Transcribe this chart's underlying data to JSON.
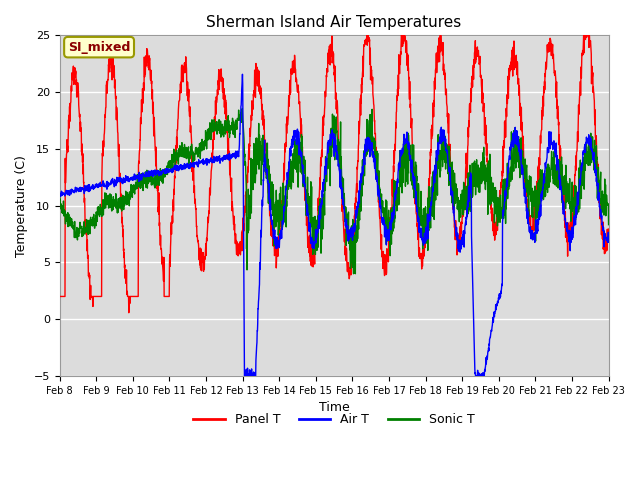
{
  "title": "Sherman Island Air Temperatures",
  "xlabel": "Time",
  "ylabel": "Temperature (C)",
  "ylim": [
    -5,
    25
  ],
  "yticks": [
    -5,
    0,
    5,
    10,
    15,
    20,
    25
  ],
  "x_tick_labels": [
    "Feb 8",
    "Feb 9",
    "Feb 10",
    "Feb 11",
    "Feb 12",
    "Feb 13",
    "Feb 14",
    "Feb 15",
    "Feb 16",
    "Feb 17",
    "Feb 18",
    "Feb 19",
    "Feb 20",
    "Feb 21",
    "Feb 22",
    "Feb 23"
  ],
  "annotation_text": "SI_mixed",
  "annotation_color": "#8B0000",
  "annotation_bg": "#FFFFCC",
  "panel_color": "red",
  "air_color": "blue",
  "sonic_color": "green",
  "plot_bg": "#DCDCDC",
  "linewidth": 1.0,
  "n_days": 15,
  "pts_per_day": 144
}
